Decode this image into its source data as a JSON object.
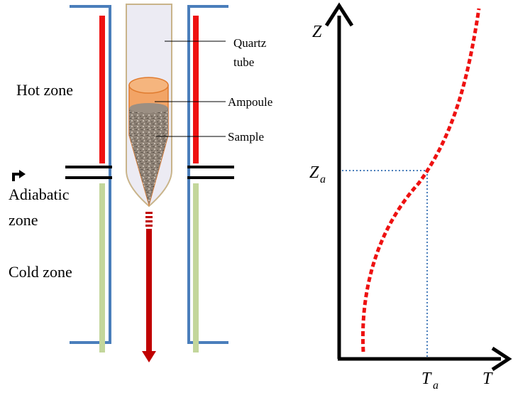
{
  "labels": {
    "hot_zone": "Hot zone",
    "adiabatic_line1": "Adiabatic",
    "adiabatic_line2": "zone",
    "cold_zone": "Cold zone",
    "quartz_line1": "Quartz",
    "quartz_line2": "tube",
    "ampoule": "Ampoule",
    "sample": "Sample"
  },
  "axes": {
    "y_label": "Z",
    "x_label": "T",
    "za_main": "Z",
    "za_sub": "a",
    "ta_main": "T",
    "ta_sub": "a"
  },
  "colors": {
    "furnace_wall": "#4a7ebb",
    "hot_heater": "#ee1111",
    "cold_heater": "#c3d69b",
    "quartz_fill": "#ecebf3",
    "quartz_stroke": "#c9b48a",
    "ampoule_fill": "#f2a466",
    "ampoule_stroke": "#e07b2e",
    "sample_fill": "#8a7d70",
    "arrow": "#c00000",
    "profile": "#ee1111",
    "guide": "#4a7ebb"
  },
  "icons": {
    "adiabatic_pointer": "curved-arrow-icon",
    "pull_direction": "down-arrow-icon"
  }
}
